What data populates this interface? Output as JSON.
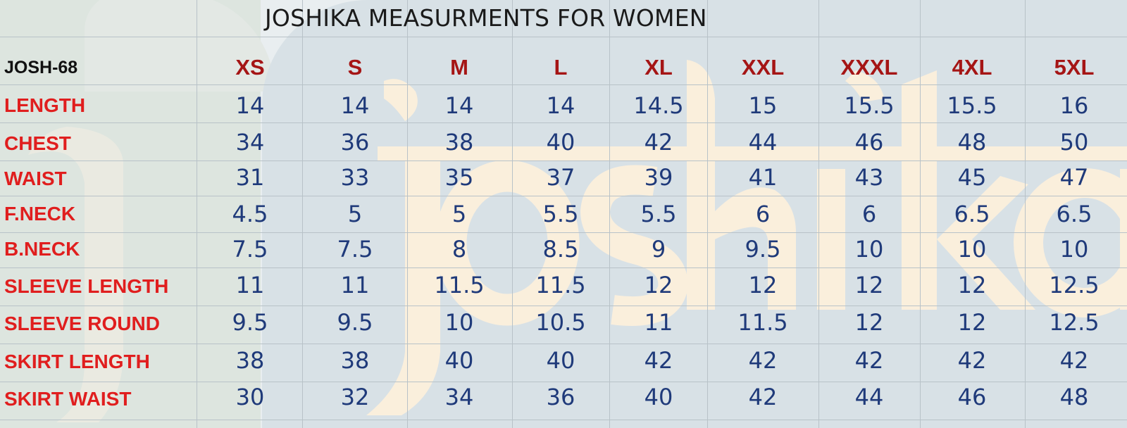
{
  "title": "JOSHIKA MEASURMENTS FOR WOMEN",
  "model": "JOSH-68",
  "watermark_text": "Joshika",
  "sizes": [
    "XS",
    "S",
    "M",
    "L",
    "XL",
    "XXL",
    "XXXL",
    "4XL",
    "5XL"
  ],
  "rows": [
    {
      "label": "LENGTH",
      "values": [
        "14",
        "14",
        "14",
        "14",
        "14.5",
        "15",
        "15.5",
        "15.5",
        "16"
      ]
    },
    {
      "label": "CHEST",
      "values": [
        "34",
        "36",
        "38",
        "40",
        "42",
        "44",
        "46",
        "48",
        "50"
      ]
    },
    {
      "label": "WAIST",
      "values": [
        "31",
        "33",
        "35",
        "37",
        "39",
        "41",
        "43",
        "45",
        "47"
      ]
    },
    {
      "label": "F.NECK",
      "values": [
        "4.5",
        "5",
        "5",
        "5.5",
        "5.5",
        "6",
        "6",
        "6.5",
        "6.5"
      ]
    },
    {
      "label": "B.NECK",
      "values": [
        "7.5",
        "7.5",
        "8",
        "8.5",
        "9",
        "9.5",
        "10",
        "10",
        "10"
      ]
    },
    {
      "label": "SLEEVE LENGTH",
      "values": [
        "11",
        "11",
        "11.5",
        "11.5",
        "12",
        "12",
        "12",
        "12",
        "12.5"
      ]
    },
    {
      "label": "SLEEVE ROUND",
      "values": [
        "9.5",
        "9.5",
        "10",
        "10.5",
        "11",
        "11.5",
        "12",
        "12",
        "12.5"
      ]
    },
    {
      "label": "SKIRT LENGTH",
      "values": [
        "38",
        "38",
        "40",
        "40",
        "42",
        "42",
        "42",
        "42",
        "42"
      ]
    },
    {
      "label": "SKIRT WAIST",
      "values": [
        "30",
        "32",
        "34",
        "36",
        "40",
        "42",
        "44",
        "46",
        "48"
      ]
    }
  ],
  "colors": {
    "label_red": "#e01e1e",
    "size_header_dark_red": "#a51515",
    "value_navy": "#1f3a7a",
    "watermark_cream": "#fdf0dc"
  }
}
